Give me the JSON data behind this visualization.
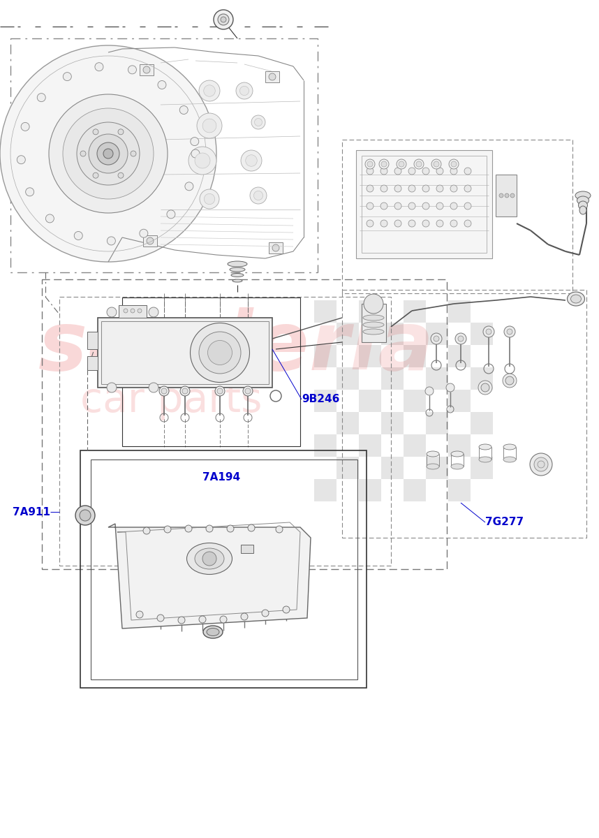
{
  "bg_color": "#ffffff",
  "line_color": "#333333",
  "dashed_color": "#666666",
  "label_color": "#0000cc",
  "wm_color1": "#f5b8b8",
  "wm_color2": "#c8c8c8",
  "label_9B246": "9B246",
  "label_7G277": "7G277",
  "label_7A194": "7A194",
  "label_7A911": "7A911",
  "fig_width": 8.58,
  "fig_height": 12.0,
  "dpi": 100
}
